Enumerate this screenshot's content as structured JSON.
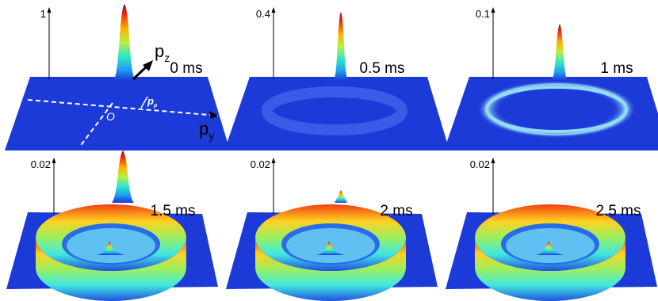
{
  "panels": [
    {
      "zmax": "1",
      "time": "0 ms"
    },
    {
      "zmax": "0.4",
      "time": "0.5 ms"
    },
    {
      "zmax": "0.1",
      "time": "1 ms"
    },
    {
      "zmax": "0.02",
      "time": "1.5 ms"
    },
    {
      "zmax": "0.02",
      "time": "2 ms"
    },
    {
      "zmax": "0.02",
      "time": "2.5 ms"
    }
  ],
  "annotations": {
    "pz": {
      "base": "p",
      "sub": "z"
    },
    "py": {
      "base": "p",
      "sub": "y"
    },
    "prho": {
      "base": "p",
      "sub": "ρ"
    },
    "origin": "O"
  }
}
